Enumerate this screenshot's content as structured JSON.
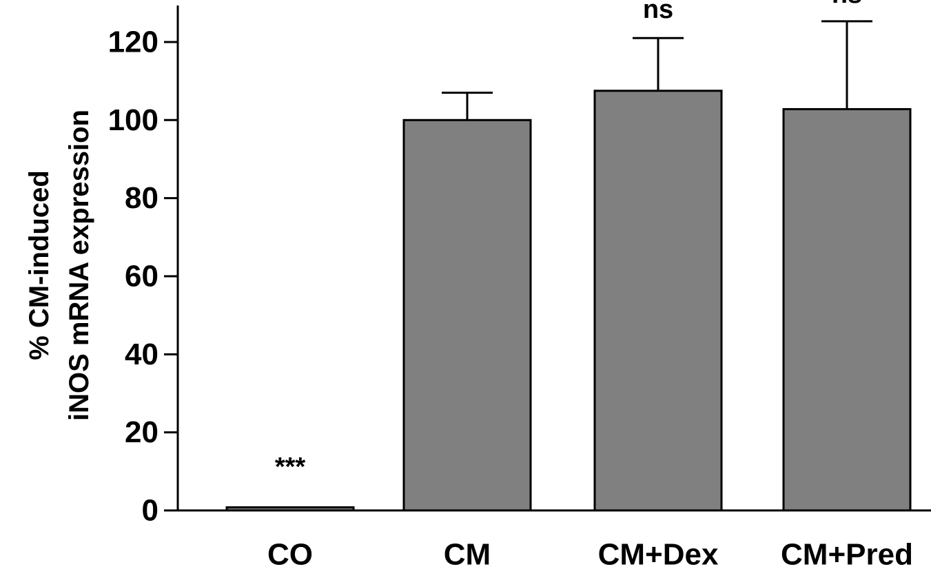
{
  "chart_data": {
    "type": "bar",
    "title": "",
    "xlabel": "",
    "ylabel_lines": [
      "% CM-induced",
      "iNOS mRNA expression"
    ],
    "categories": [
      "CO",
      "CM",
      "CM+Dex",
      "CM+Pred"
    ],
    "values": [
      0.8,
      100,
      107.5,
      102.8
    ],
    "error_upper": [
      0.3,
      7,
      13.5,
      22.5
    ],
    "annotations": [
      "***",
      "",
      "ns",
      "ns"
    ],
    "yticks": [
      0,
      20,
      40,
      60,
      80,
      100,
      120
    ],
    "ylim": [
      0,
      132
    ],
    "bar_color": "#808080",
    "grid": false,
    "legend": "none"
  }
}
